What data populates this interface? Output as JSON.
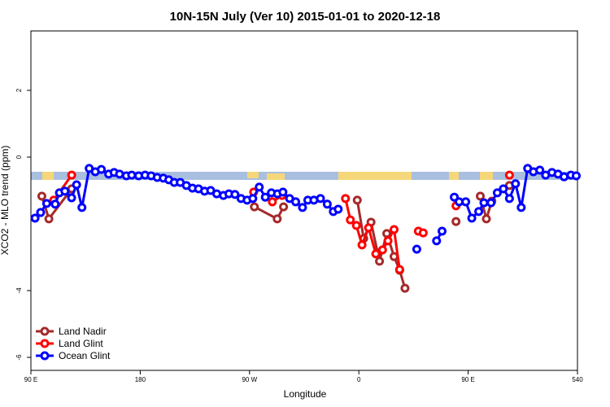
{
  "chart_data": {
    "type": "line",
    "title": "10N-15N July (Ver 10)   2015-01-01 to 2020-12-18",
    "xlabel": "Longitude",
    "ylabel": "XCO2 - MLO trend (ppm)",
    "xlim": [
      90,
      540
    ],
    "ylim": [
      -6.39,
      3.78
    ],
    "xticks": [
      {
        "value": 90,
        "label": "90 E"
      },
      180,
      {
        "value": 270,
        "label": "90 W"
      },
      {
        "value": 360,
        "label": "0"
      },
      {
        "value": 450,
        "label": "90 E"
      },
      540
    ],
    "yticks": [
      -6,
      -4,
      0,
      2
    ],
    "legend": "bottom-left",
    "series": [
      {
        "name": "Land Nadir",
        "color": "#a52a2a",
        "x": [
          99,
          104.8,
          123.6,
          null,
          274,
          292.8,
          298,
          null,
          358.7,
          364,
          370,
          377,
          383,
          389,
          393.6,
          398,
          null,
          440,
          null,
          460,
          465,
          469.5,
          null,
          484
        ],
        "values": [
          -1.17,
          -1.85,
          -0.95,
          null,
          -1.49,
          -1.85,
          -1.49,
          null,
          -1.29,
          -2.44,
          -1.95,
          -3.12,
          -2.29,
          -2.98,
          -3.39,
          -3.93,
          null,
          -1.93,
          null,
          -1.17,
          -1.85,
          -1.32,
          null,
          -0.85
        ]
      },
      {
        "name": "Land Glint",
        "color": "#ff0000",
        "x": [
          108.8,
          123.6,
          null,
          273.4,
          null,
          288.8,
          296.9,
          null,
          349,
          353,
          358,
          362.6,
          368,
          374,
          379.5,
          384,
          389,
          393.6,
          null,
          409,
          413,
          null,
          440,
          null,
          484
        ],
        "values": [
          -1.29,
          -0.54,
          null,
          -1.05,
          null,
          -1.34,
          -1.15,
          null,
          -1.24,
          -1.88,
          -2.05,
          -2.63,
          -2.12,
          -2.9,
          -2.78,
          -2.51,
          -2.17,
          -3.37,
          null,
          -2.22,
          -2.27,
          null,
          -1.46,
          null,
          -0.54
        ]
      },
      {
        "name": "Ocean Glint",
        "color": "#0000ff",
        "x": [
          93.4,
          98,
          103,
          110,
          113.5,
          118,
          123.5,
          127.6,
          132,
          138,
          143,
          148,
          154,
          158.5,
          163,
          168.6,
          173,
          178.7,
          184,
          189,
          194,
          199,
          203.5,
          208,
          213,
          218,
          223,
          228,
          233,
          238,
          243,
          248.5,
          253,
          258,
          263,
          268,
          272.7,
          278,
          283,
          288,
          293,
          297.5,
          303,
          308,
          313.6,
          318,
          323,
          328.4,
          334,
          339,
          343,
          null,
          407.7,
          null,
          424,
          428.5,
          null,
          438.6,
          442.6,
          448,
          453,
          458.7,
          463,
          468.8,
          474,
          479,
          484,
          489,
          493.7,
          499,
          503.7,
          509,
          513.8,
          519,
          524,
          529,
          534.6,
          539
        ],
        "values": [
          -1.83,
          -1.66,
          -1.39,
          -1.41,
          -1.07,
          -1.02,
          -1.22,
          -0.83,
          -1.51,
          -0.34,
          -0.44,
          -0.37,
          -0.51,
          -0.46,
          -0.51,
          -0.56,
          -0.54,
          -0.56,
          -0.54,
          -0.56,
          -0.61,
          -0.63,
          -0.68,
          -0.76,
          -0.76,
          -0.85,
          -0.93,
          -0.95,
          -1.02,
          -1.0,
          -1.1,
          -1.15,
          -1.1,
          -1.12,
          -1.24,
          -1.29,
          -1.24,
          -0.9,
          -1.2,
          -1.07,
          -1.1,
          -1.05,
          -1.24,
          -1.34,
          -1.51,
          -1.29,
          -1.29,
          -1.24,
          -1.41,
          -1.63,
          -1.56,
          null,
          -2.76,
          null,
          -2.51,
          -2.22,
          null,
          -1.2,
          -1.34,
          -1.34,
          -1.83,
          -1.63,
          -1.37,
          -1.37,
          -1.07,
          -0.95,
          -1.24,
          -0.8,
          -1.51,
          -0.34,
          -0.44,
          -0.39,
          -0.54,
          -0.46,
          -0.51,
          -0.59,
          -0.54,
          -0.56
        ]
      }
    ]
  }
}
